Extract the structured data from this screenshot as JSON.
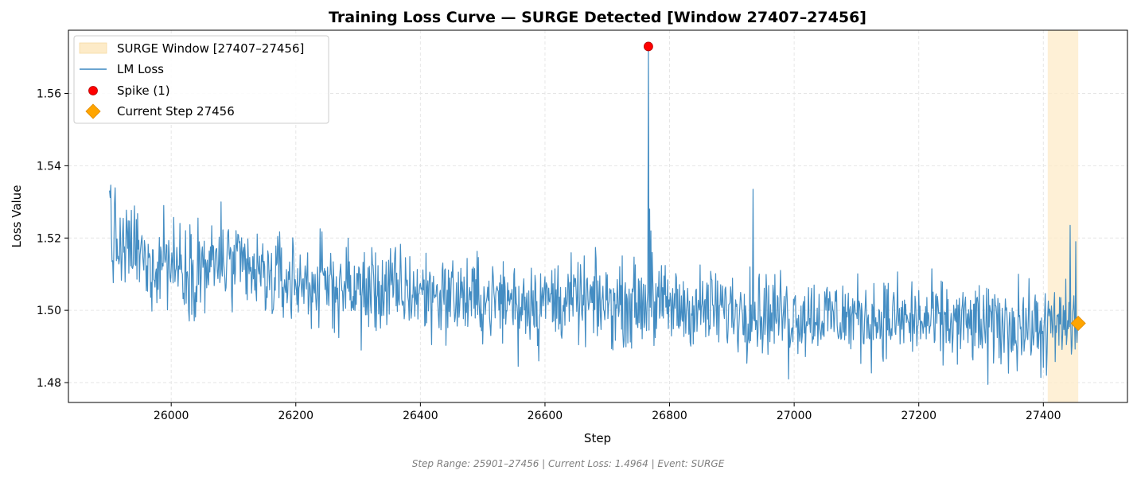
{
  "chart_data": {
    "type": "line",
    "title": "Training Loss Curve — SURGE Detected [Window 27407–27456]",
    "xlabel": "Step",
    "ylabel": "Loss Value",
    "xlim": [
      25835,
      27535
    ],
    "ylim": [
      1.4745,
      1.5775
    ],
    "x_ticks": [
      26000,
      26200,
      26400,
      26600,
      26800,
      27000,
      27200,
      27400
    ],
    "y_ticks": [
      1.48,
      1.5,
      1.52,
      1.54,
      1.56
    ],
    "y_tick_labels": [
      "1.48",
      "1.50",
      "1.52",
      "1.54",
      "1.56"
    ],
    "grid": true,
    "legend_position": "top-left",
    "x_range": [
      25901,
      27456
    ],
    "surge_window": {
      "label": "SURGE Window [27407–27456]",
      "start": 27407,
      "end": 27456,
      "color": "#fdebc8"
    },
    "series": [
      {
        "name": "LM Loss",
        "color": "#3a87c0",
        "anchors": [
          [
            25901,
            1.527
          ],
          [
            25903,
            1.533
          ],
          [
            25905,
            1.516
          ],
          [
            25910,
            1.52
          ],
          [
            25920,
            1.515
          ],
          [
            25940,
            1.518
          ],
          [
            25960,
            1.512
          ],
          [
            25990,
            1.514
          ],
          [
            26040,
            1.511
          ],
          [
            26080,
            1.513
          ],
          [
            26150,
            1.509
          ],
          [
            26200,
            1.508
          ],
          [
            26300,
            1.506
          ],
          [
            26400,
            1.505
          ],
          [
            26500,
            1.503
          ],
          [
            26600,
            1.503
          ],
          [
            26700,
            1.502
          ],
          [
            26760,
            1.502
          ],
          [
            26800,
            1.501
          ],
          [
            26900,
            1.5
          ],
          [
            27000,
            1.499
          ],
          [
            27100,
            1.498
          ],
          [
            27200,
            1.497
          ],
          [
            27300,
            1.496
          ],
          [
            27400,
            1.495
          ],
          [
            27456,
            1.4964
          ]
        ],
        "events": [
          [
            26766,
            1.573
          ],
          [
            26768,
            1.528
          ],
          [
            26770,
            1.522
          ],
          [
            26772,
            1.516
          ],
          [
            26934,
            1.5335
          ],
          [
            26929,
            1.512
          ],
          [
            26991,
            1.481
          ],
          [
            27311,
            1.4795
          ],
          [
            27405,
            1.482
          ],
          [
            27443,
            1.5235
          ],
          [
            27452,
            1.519
          ],
          [
            26043,
            1.5255
          ],
          [
            26080,
            1.53
          ],
          [
            25988,
            1.529
          ],
          [
            26305,
            1.489
          ],
          [
            26557,
            1.4845
          ],
          [
            26590,
            1.486
          ],
          [
            27360,
            1.51
          ]
        ],
        "noise_amplitude": 0.0055
      }
    ],
    "spike": {
      "label": "Spike (1)",
      "x": 26766,
      "y": 1.573,
      "color": "#ff0000"
    },
    "current": {
      "label": "Current Step 27456",
      "x": 27456,
      "y": 1.4964,
      "color": "#ffa500"
    }
  },
  "footer_text": "Step Range: 25901–27456 | Current Loss: 1.4964 | Event: SURGE"
}
